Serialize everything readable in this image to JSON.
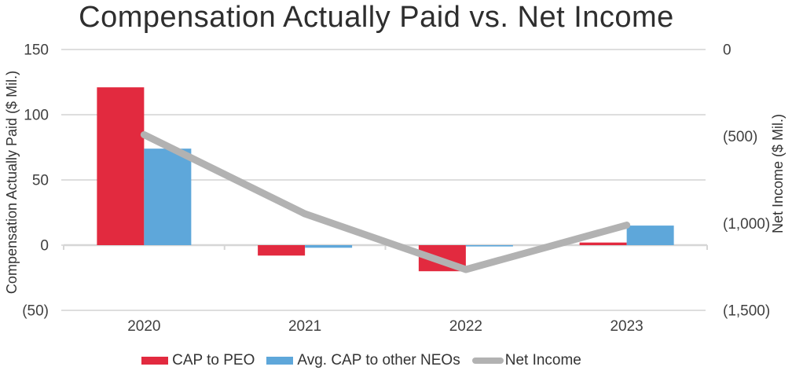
{
  "title": "Compensation Actually Paid vs. Net Income",
  "chart_data": {
    "type": "combo",
    "categories": [
      "2020",
      "2021",
      "2022",
      "2023"
    ],
    "series": [
      {
        "name": "CAP to PEO",
        "type": "bar",
        "axis": "left",
        "color": "#e22a3f",
        "values": [
          121,
          -8,
          -20,
          2
        ]
      },
      {
        "name": "Avg. CAP to other NEOs",
        "type": "bar",
        "axis": "left",
        "color": "#5ea7da",
        "values": [
          74,
          -2,
          -1,
          15
        ]
      },
      {
        "name": "Net Income",
        "type": "line",
        "axis": "right",
        "color": "#b2b2b2",
        "values": [
          -490,
          -945,
          -1265,
          -1010
        ]
      }
    ],
    "left_axis": {
      "label": "Compensation Actually Paid ($ Mil.)",
      "max": 150,
      "min": -50,
      "ticks": [
        {
          "v": 150,
          "label": "150"
        },
        {
          "v": 100,
          "label": "100"
        },
        {
          "v": 50,
          "label": "50"
        },
        {
          "v": 0,
          "label": "0"
        },
        {
          "v": -50,
          "label": "(50)"
        }
      ]
    },
    "right_axis": {
      "label": "Net Income ($ Mil.)",
      "max": 0,
      "min": -1500,
      "ticks": [
        {
          "v": 0,
          "label": "0"
        },
        {
          "v": -500,
          "label": "(500)"
        },
        {
          "v": -1000,
          "label": "(1,000)"
        },
        {
          "v": -1500,
          "label": "(1,500)"
        }
      ]
    },
    "grid": true,
    "grid_color": "#dedede",
    "axis_line_color": "#d6d6d6",
    "legend_position": "bottom"
  },
  "legend": [
    {
      "label": "CAP to PEO",
      "color": "#e22a3f",
      "swatch": "rect"
    },
    {
      "label": "Avg. CAP to other NEOs",
      "color": "#5ea7da",
      "swatch": "rect"
    },
    {
      "label": "Net Income",
      "color": "#b2b2b2",
      "swatch": "line"
    }
  ]
}
